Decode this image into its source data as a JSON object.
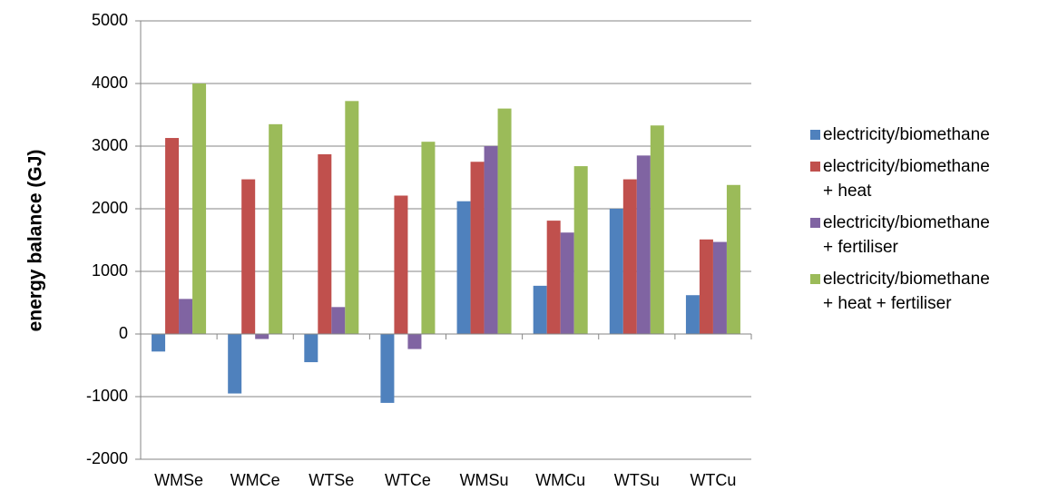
{
  "chart_data": {
    "type": "bar",
    "ylabel": "energy balance (GJ)",
    "categories": [
      "WMSe",
      "WMCe",
      "WTSe",
      "WTCe",
      "WMSu",
      "WMCu",
      "WTSu",
      "WTCu"
    ],
    "series": [
      {
        "name": "electricity/biomethane",
        "color": "#4f81bd",
        "values": [
          -280,
          -950,
          -450,
          -1100,
          2120,
          770,
          2000,
          620
        ]
      },
      {
        "name": "electricity/biomethane + heat",
        "color": "#c0504d",
        "values": [
          3130,
          2470,
          2870,
          2210,
          2750,
          1810,
          2470,
          1510
        ]
      },
      {
        "name": "electricity/biomethane + fertiliser",
        "color": "#8064a2",
        "values": [
          560,
          -80,
          430,
          -240,
          3000,
          1620,
          2850,
          1470
        ]
      },
      {
        "name": "electricity/biomethane + heat + fertiliser",
        "color": "#9bbb59",
        "values": [
          4000,
          3350,
          3720,
          3070,
          3600,
          2680,
          3330,
          2380
        ]
      }
    ],
    "ylim": [
      -2000,
      5000
    ],
    "yticks": [
      -2000,
      -1000,
      0,
      1000,
      2000,
      3000,
      4000,
      5000
    ],
    "grid": true,
    "legend": "right"
  }
}
